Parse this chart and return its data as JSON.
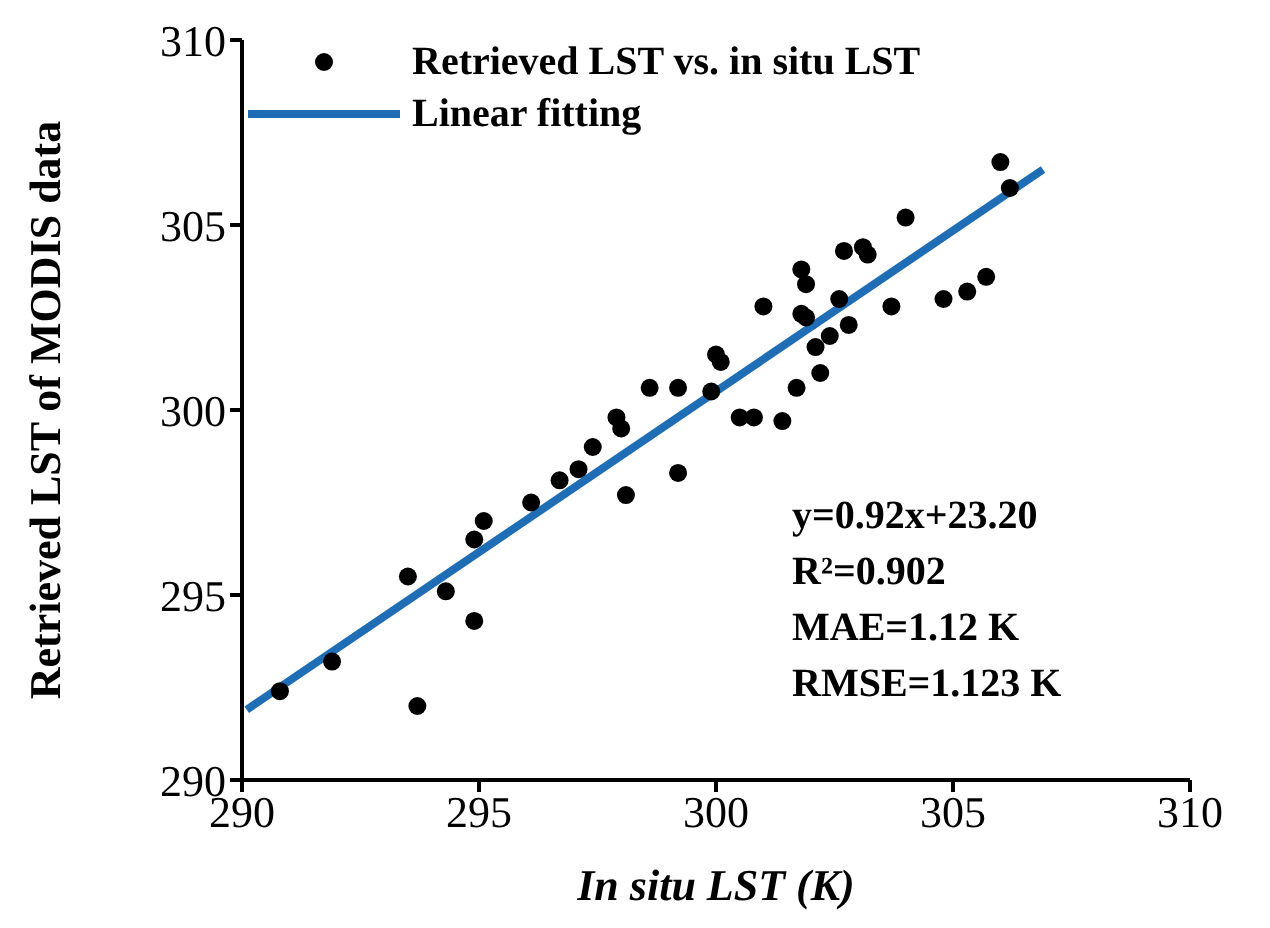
{
  "chart_data": {
    "type": "scatter",
    "xlabel": "In situ LST (K)",
    "ylabel": "Retrieved LST of MODIS data",
    "xlim": [
      290,
      310
    ],
    "xticks": [
      290,
      295,
      300,
      305,
      310
    ],
    "ylim": [
      290,
      310
    ],
    "yticks": [
      290,
      295,
      300,
      305,
      310
    ],
    "legend": "top left",
    "series": [
      {
        "name": "Retrieved LST vs. in situ LST",
        "color": "#000000",
        "marker": "circle",
        "x": [
          290.8,
          291.9,
          293.5,
          293.7,
          294.3,
          294.9,
          294.9,
          295.1,
          296.1,
          296.7,
          297.1,
          297.4,
          297.9,
          298.0,
          298.1,
          298.6,
          299.2,
          299.2,
          299.9,
          300.0,
          300.1,
          300.5,
          300.8,
          301.0,
          301.4,
          301.7,
          301.8,
          301.8,
          301.9,
          301.9,
          302.1,
          302.2,
          302.4,
          302.6,
          302.7,
          302.8,
          303.1,
          303.2,
          303.7,
          304.0,
          304.8,
          305.3,
          305.7,
          306.0,
          306.2
        ],
        "values": [
          292.4,
          293.2,
          295.5,
          292.0,
          295.1,
          294.3,
          296.5,
          297.0,
          297.5,
          298.1,
          298.4,
          299.0,
          299.8,
          299.5,
          297.7,
          300.6,
          298.3,
          300.6,
          300.5,
          301.5,
          301.3,
          299.8,
          299.8,
          302.8,
          299.7,
          300.6,
          303.8,
          302.6,
          303.4,
          302.5,
          301.7,
          301.0,
          302.0,
          303.0,
          304.3,
          302.3,
          304.4,
          304.2,
          302.8,
          305.2,
          303.0,
          303.2,
          303.6,
          306.7,
          306.0
        ]
      },
      {
        "name": "Linear fitting",
        "color": "#1f6db5",
        "type": "line",
        "x": [
          290.1,
          306.9
        ],
        "values": [
          291.9,
          306.5
        ]
      }
    ],
    "annotations": [
      "y=0.92x+23.20",
      "R²=0.902",
      "MAE=1.12 K",
      "RMSE=1.123 K"
    ]
  }
}
